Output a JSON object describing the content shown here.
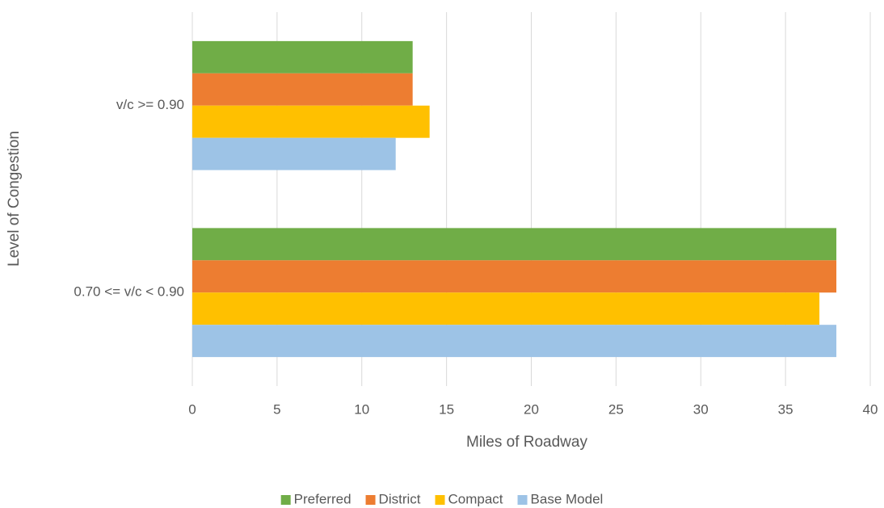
{
  "chart_data": {
    "type": "hbar",
    "categories": [
      "v/c >= 0.90",
      "0.70 <= v/c < 0.90"
    ],
    "series": [
      {
        "name": "Preferred",
        "color": "#70ad47",
        "values": [
          13,
          38
        ]
      },
      {
        "name": "District",
        "color": "#ed7d31",
        "values": [
          13,
          38
        ]
      },
      {
        "name": "Compact",
        "color": "#ffc000",
        "values": [
          14,
          37
        ]
      },
      {
        "name": "Base Model",
        "color": "#9dc3e6",
        "values": [
          12,
          38
        ]
      }
    ],
    "xlabel": "Miles of Roadway",
    "ylabel": "Level of Congestion",
    "xlim": [
      0,
      40
    ],
    "xticks": [
      0,
      5,
      10,
      15,
      20,
      25,
      30,
      35,
      40
    ],
    "grid": true,
    "legend": "bottom"
  }
}
